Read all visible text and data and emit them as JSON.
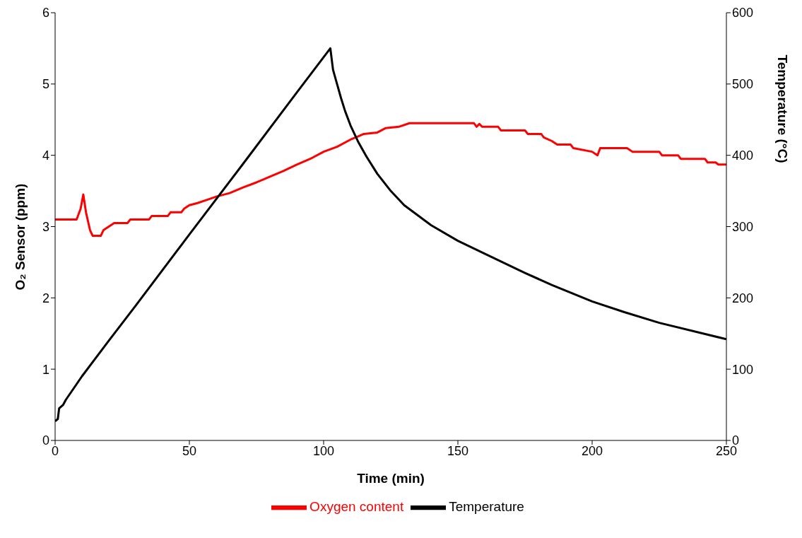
{
  "chart_data": {
    "type": "line",
    "xlabel": "Time (min)",
    "ylabel": "O₂ Sensor (ppm)",
    "y2label": "Temperature (°C)",
    "xlim": [
      0,
      250
    ],
    "xticks": [
      0,
      50,
      100,
      150,
      200,
      250
    ],
    "ylim": [
      0,
      6
    ],
    "yticks": [
      0,
      1,
      2,
      3,
      4,
      5,
      6
    ],
    "y2lim": [
      0,
      600
    ],
    "y2ticks": [
      0,
      100,
      200,
      300,
      400,
      500,
      600
    ],
    "grid": false,
    "legend": "bottom",
    "marker": "none",
    "line_style": "solid",
    "series": [
      {
        "name": "Oxygen content",
        "color": "#ff0000",
        "x": [
          0,
          8,
          9.5,
          10.5,
          11.5,
          13,
          14,
          17,
          18,
          20,
          22,
          27,
          28,
          35,
          36,
          42,
          43,
          47,
          48,
          50,
          53,
          57,
          60,
          65,
          70,
          75,
          80,
          85,
          90,
          95,
          100,
          105,
          110,
          115,
          120,
          123,
          128,
          132,
          156,
          157,
          158,
          159,
          165,
          166,
          175,
          176,
          181,
          182,
          185,
          187,
          192,
          193,
          200,
          202,
          203,
          213,
          215,
          225,
          226,
          232,
          233,
          242,
          243,
          246,
          247,
          250
        ],
        "values": [
          3.1,
          3.1,
          3.25,
          3.45,
          3.2,
          2.95,
          2.87,
          2.87,
          2.95,
          3.0,
          3.05,
          3.05,
          3.1,
          3.1,
          3.15,
          3.15,
          3.2,
          3.2,
          3.25,
          3.3,
          3.33,
          3.38,
          3.42,
          3.47,
          3.55,
          3.62,
          3.7,
          3.78,
          3.87,
          3.95,
          4.05,
          4.12,
          4.22,
          4.3,
          4.32,
          4.38,
          4.4,
          4.45,
          4.45,
          4.4,
          4.44,
          4.4,
          4.4,
          4.35,
          4.35,
          4.3,
          4.3,
          4.25,
          4.2,
          4.15,
          4.15,
          4.1,
          4.05,
          4.0,
          4.1,
          4.1,
          4.05,
          4.05,
          4.0,
          4.0,
          3.95,
          3.95,
          3.9,
          3.9,
          3.87,
          3.87
        ]
      },
      {
        "name": "Temperature",
        "color": "#000000",
        "axis": "y2",
        "x": [
          0,
          1,
          1.5,
          3,
          4,
          10,
          20,
          30,
          50,
          70,
          90,
          102.5,
          103.5,
          105,
          106.5,
          108,
          110,
          113,
          116,
          120,
          125,
          130,
          140,
          150,
          160,
          175,
          185,
          200,
          212,
          225,
          250
        ],
        "values": [
          27,
          30,
          45,
          50,
          57,
          90,
          140,
          189,
          289,
          388,
          488,
          550,
          520,
          500,
          480,
          462,
          442,
          418,
          398,
          374,
          350,
          330,
          302,
          280,
          262,
          235,
          218,
          195,
          180,
          165,
          142
        ]
      }
    ]
  }
}
